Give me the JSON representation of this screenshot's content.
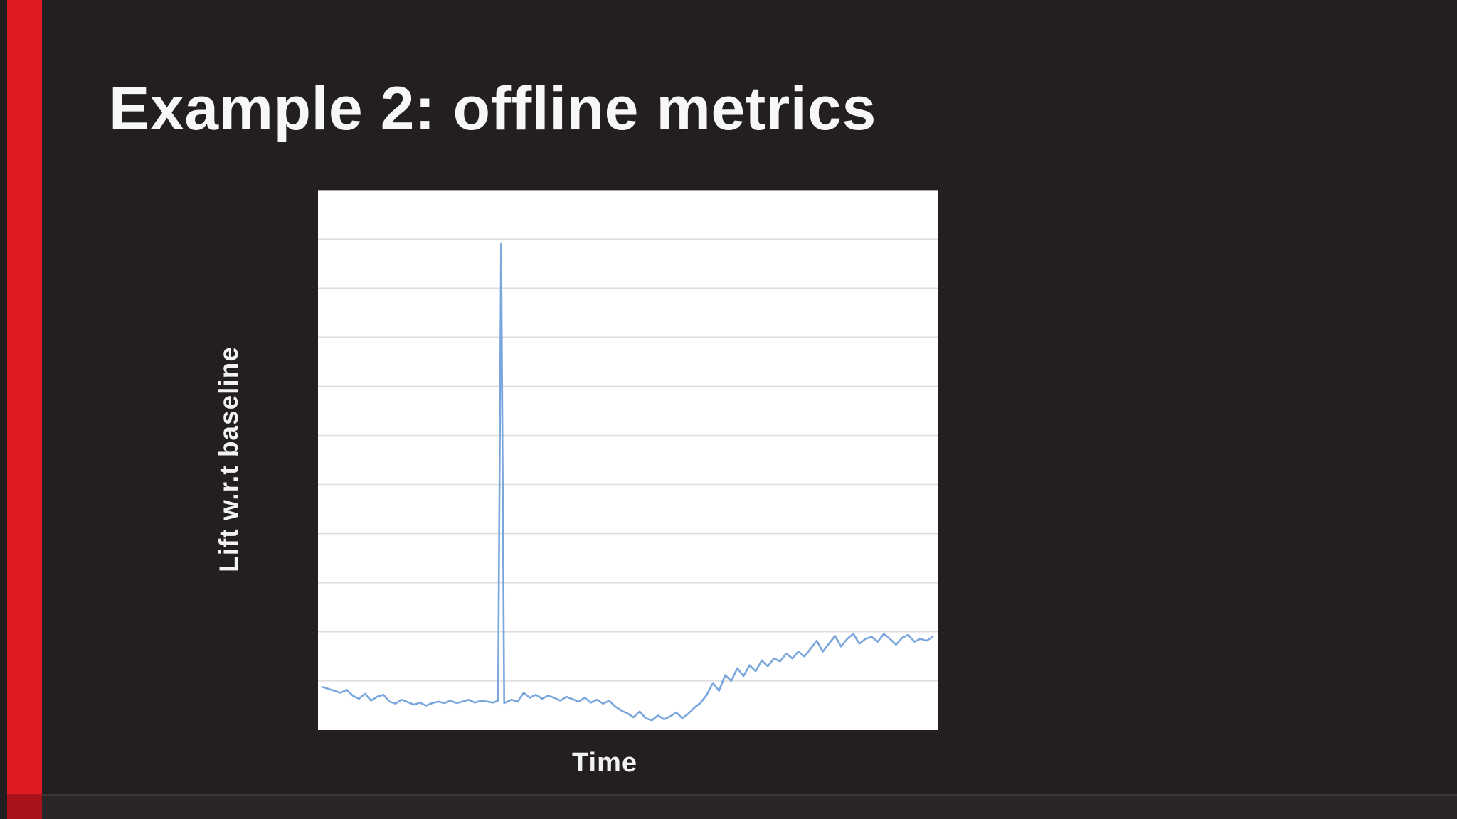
{
  "slide": {
    "title": "Example 2: offline metrics",
    "background_color": "#231f20",
    "accent_color": "#e01b24"
  },
  "chart_data": {
    "type": "line",
    "title": "",
    "xlabel": "Time",
    "ylabel": "Lift w.r.t baseline",
    "x_range": [
      0,
      100
    ],
    "ylim": [
      0,
      11
    ],
    "grid_step": 1,
    "grid": true,
    "legend": "none",
    "tick_labels": "none visible",
    "plot_background": "#ffffff",
    "gridline_color": "#dcdcdc",
    "top_border_color": "#a8a8a8",
    "line_color": "#79a6dc",
    "series": [
      {
        "name": "lift",
        "points": [
          [
            0,
            0.88
          ],
          [
            1,
            0.84
          ],
          [
            2,
            0.8
          ],
          [
            3,
            0.76
          ],
          [
            4,
            0.82
          ],
          [
            5,
            0.7
          ],
          [
            6,
            0.64
          ],
          [
            7,
            0.74
          ],
          [
            8,
            0.6
          ],
          [
            9,
            0.68
          ],
          [
            10,
            0.72
          ],
          [
            11,
            0.58
          ],
          [
            12,
            0.54
          ],
          [
            13,
            0.62
          ],
          [
            14,
            0.57
          ],
          [
            15,
            0.52
          ],
          [
            16,
            0.56
          ],
          [
            17,
            0.5
          ],
          [
            18,
            0.55
          ],
          [
            19,
            0.58
          ],
          [
            20,
            0.55
          ],
          [
            21,
            0.6
          ],
          [
            22,
            0.55
          ],
          [
            23,
            0.58
          ],
          [
            24,
            0.62
          ],
          [
            25,
            0.56
          ],
          [
            26,
            0.6
          ],
          [
            27,
            0.58
          ],
          [
            28,
            0.56
          ],
          [
            28.8,
            0.6
          ],
          [
            29.3,
            9.9
          ],
          [
            29.8,
            0.55
          ],
          [
            31,
            0.62
          ],
          [
            32,
            0.58
          ],
          [
            33,
            0.76
          ],
          [
            34,
            0.66
          ],
          [
            35,
            0.72
          ],
          [
            36,
            0.64
          ],
          [
            37,
            0.7
          ],
          [
            38,
            0.66
          ],
          [
            39,
            0.6
          ],
          [
            40,
            0.68
          ],
          [
            41,
            0.63
          ],
          [
            42,
            0.58
          ],
          [
            43,
            0.66
          ],
          [
            44,
            0.56
          ],
          [
            45,
            0.62
          ],
          [
            46,
            0.54
          ],
          [
            47,
            0.6
          ],
          [
            48,
            0.48
          ],
          [
            49,
            0.4
          ],
          [
            50,
            0.34
          ],
          [
            51,
            0.26
          ],
          [
            52,
            0.38
          ],
          [
            53,
            0.24
          ],
          [
            54,
            0.2
          ],
          [
            55,
            0.3
          ],
          [
            56,
            0.22
          ],
          [
            57,
            0.28
          ],
          [
            58,
            0.36
          ],
          [
            59,
            0.24
          ],
          [
            60,
            0.34
          ],
          [
            61,
            0.46
          ],
          [
            62,
            0.56
          ],
          [
            63,
            0.72
          ],
          [
            64,
            0.96
          ],
          [
            65,
            0.8
          ],
          [
            66,
            1.12
          ],
          [
            67,
            1.0
          ],
          [
            68,
            1.26
          ],
          [
            69,
            1.1
          ],
          [
            70,
            1.32
          ],
          [
            71,
            1.2
          ],
          [
            72,
            1.42
          ],
          [
            73,
            1.3
          ],
          [
            74,
            1.46
          ],
          [
            75,
            1.4
          ],
          [
            76,
            1.56
          ],
          [
            77,
            1.46
          ],
          [
            78,
            1.6
          ],
          [
            79,
            1.5
          ],
          [
            80,
            1.66
          ],
          [
            81,
            1.82
          ],
          [
            82,
            1.6
          ],
          [
            83,
            1.76
          ],
          [
            84,
            1.92
          ],
          [
            85,
            1.7
          ],
          [
            86,
            1.86
          ],
          [
            87,
            1.96
          ],
          [
            88,
            1.76
          ],
          [
            89,
            1.86
          ],
          [
            90,
            1.9
          ],
          [
            91,
            1.8
          ],
          [
            92,
            1.96
          ],
          [
            93,
            1.86
          ],
          [
            94,
            1.74
          ],
          [
            95,
            1.88
          ],
          [
            96,
            1.94
          ],
          [
            97,
            1.8
          ],
          [
            98,
            1.86
          ],
          [
            99,
            1.82
          ],
          [
            100,
            1.9
          ]
        ]
      }
    ]
  }
}
